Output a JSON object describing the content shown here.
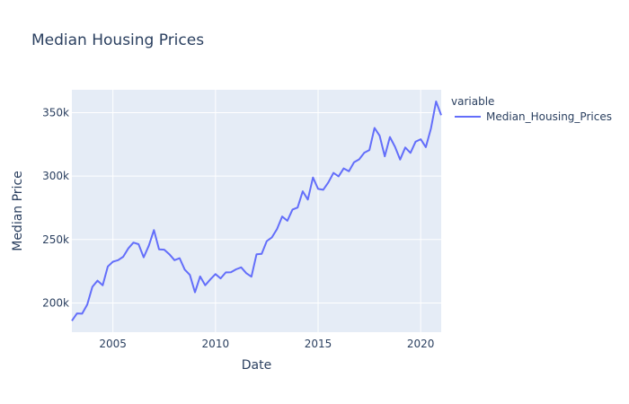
{
  "chart_data": {
    "type": "line",
    "title": "Median Housing Prices",
    "xlabel": "Date",
    "ylabel": "Median Price",
    "legend_title": "variable",
    "legend_position": "top-right",
    "grid": true,
    "xlim": [
      2003.0,
      2021.0
    ],
    "ylim": [
      177000,
      368000
    ],
    "x_ticks": [
      2005,
      2010,
      2015,
      2020
    ],
    "x_tick_labels": [
      "2005",
      "2010",
      "2015",
      "2020"
    ],
    "y_ticks": [
      200000,
      250000,
      300000,
      350000
    ],
    "y_tick_labels": [
      "200k",
      "250k",
      "300k",
      "350k"
    ],
    "colors": {
      "line": "#636efa",
      "plot_bg": "#e5ecf6",
      "grid": "#ffffff",
      "text": "#2a3f5f"
    },
    "series": [
      {
        "name": "Median_Housing_Prices",
        "x": [
          "2003-01",
          "2003-04",
          "2003-07",
          "2003-10",
          "2004-01",
          "2004-04",
          "2004-07",
          "2004-10",
          "2005-01",
          "2005-04",
          "2005-07",
          "2005-10",
          "2006-01",
          "2006-04",
          "2006-07",
          "2006-10",
          "2007-01",
          "2007-04",
          "2007-07",
          "2007-10",
          "2008-01",
          "2008-04",
          "2008-07",
          "2008-10",
          "2009-01",
          "2009-04",
          "2009-07",
          "2009-10",
          "2010-01",
          "2010-04",
          "2010-07",
          "2010-10",
          "2011-01",
          "2011-04",
          "2011-07",
          "2011-10",
          "2012-01",
          "2012-04",
          "2012-07",
          "2012-10",
          "2013-01",
          "2013-04",
          "2013-07",
          "2013-10",
          "2014-01",
          "2014-04",
          "2014-07",
          "2014-10",
          "2015-01",
          "2015-04",
          "2015-07",
          "2015-10",
          "2016-01",
          "2016-04",
          "2016-07",
          "2016-10",
          "2017-01",
          "2017-04",
          "2017-07",
          "2017-10",
          "2018-01",
          "2018-04",
          "2018-07",
          "2018-10",
          "2019-01",
          "2019-04",
          "2019-07",
          "2019-10",
          "2020-01",
          "2020-04",
          "2020-07",
          "2020-10",
          "2021-01"
        ],
        "values": [
          186000,
          191800,
          191600,
          198800,
          212700,
          217600,
          213900,
          228800,
          232500,
          233700,
          236400,
          243000,
          247600,
          246300,
          236000,
          245100,
          257400,
          242200,
          242000,
          238400,
          233700,
          235300,
          226300,
          222100,
          208400,
          220900,
          214000,
          218600,
          222800,
          219400,
          224100,
          224200,
          226500,
          228100,
          223500,
          220700,
          238400,
          238700,
          248800,
          251700,
          258300,
          268100,
          264800,
          273600,
          275200,
          288000,
          281500,
          298900,
          289900,
          289200,
          295000,
          302500,
          299800,
          306000,
          303800,
          310900,
          313200,
          318400,
          320500,
          337900,
          331800,
          315600,
          330800,
          323100,
          313000,
          322500,
          318300,
          327100,
          329000,
          322800,
          337500,
          358800,
          348000
        ]
      }
    ]
  }
}
